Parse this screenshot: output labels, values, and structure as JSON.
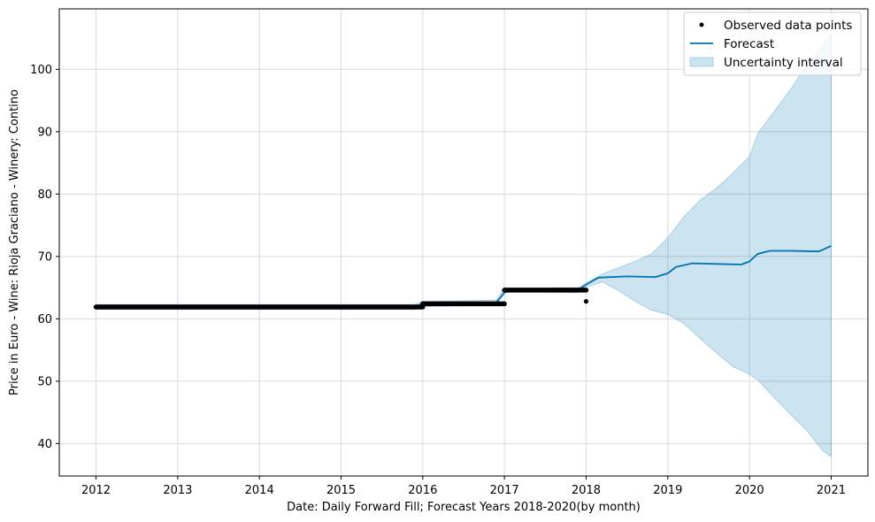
{
  "chart_data": {
    "type": "line",
    "xlabel": "Date: Daily Forward Fill; Forecast Years 2018-2020(by month)",
    "ylabel": "Price in Euro - Wine: Rioja Graciano - Winery: Contino",
    "xlim": [
      2011.55,
      2021.45
    ],
    "ylim": [
      34.8,
      109.7
    ],
    "x_ticks": [
      2012,
      2013,
      2014,
      2015,
      2016,
      2017,
      2018,
      2019,
      2020,
      2021
    ],
    "x_tick_labels": [
      "2012",
      "2013",
      "2014",
      "2015",
      "2016",
      "2017",
      "2018",
      "2019",
      "2020",
      "2021"
    ],
    "y_ticks": [
      40,
      50,
      60,
      70,
      80,
      90,
      100
    ],
    "y_tick_labels": [
      "40",
      "50",
      "60",
      "70",
      "80",
      "90",
      "100"
    ],
    "grid": true,
    "legend_position": "top-right",
    "legend": [
      {
        "label": "Observed data points",
        "kind": "marker"
      },
      {
        "label": "Forecast",
        "kind": "line"
      },
      {
        "label": "Uncertainty interval",
        "kind": "patch"
      }
    ],
    "colors": {
      "observed": "#000000",
      "forecast": "#0072B2",
      "interval": "#0072B2"
    },
    "observed_segments": [
      {
        "x_start": 2012.0,
        "x_end": 2016.0,
        "y": 61.9
      },
      {
        "x_start": 2016.0,
        "x_end": 2017.0,
        "y": 62.4
      },
      {
        "x_start": 2017.0,
        "x_end": 2018.0,
        "y": 64.6
      }
    ],
    "observed_points": [
      {
        "x": 2018.0,
        "y": 62.8
      }
    ],
    "series": [
      {
        "name": "Forecast",
        "x": [
          2012.0,
          2012.2,
          2012.5,
          2012.8,
          2013.0,
          2013.2,
          2013.5,
          2013.8,
          2014.0,
          2014.2,
          2014.5,
          2014.8,
          2015.0,
          2015.5,
          2015.9,
          2016.0,
          2016.5,
          2016.9,
          2017.0,
          2017.1,
          2017.5,
          2017.9,
          2018.0,
          2018.15,
          2018.5,
          2018.85,
          2019.0,
          2019.1,
          2019.3,
          2019.6,
          2019.9,
          2020.0,
          2020.1,
          2020.25,
          2020.5,
          2020.85,
          2021.0
        ],
        "y": [
          61.9,
          61.8,
          61.9,
          61.9,
          61.8,
          61.9,
          61.9,
          61.9,
          61.8,
          61.9,
          61.9,
          61.9,
          61.8,
          61.9,
          61.9,
          62.4,
          62.5,
          62.6,
          64.2,
          64.6,
          64.6,
          64.6,
          65.5,
          66.6,
          66.8,
          66.7,
          67.3,
          68.3,
          68.9,
          68.8,
          68.7,
          69.2,
          70.4,
          70.9,
          70.9,
          70.8,
          71.7
        ]
      }
    ],
    "interval": {
      "x": [
        2012.0,
        2015.9,
        2016.0,
        2016.9,
        2017.0,
        2017.9,
        2018.0,
        2018.2,
        2018.4,
        2018.6,
        2018.8,
        2019.0,
        2019.2,
        2019.4,
        2019.6,
        2019.8,
        2020.0,
        2020.1,
        2020.3,
        2020.5,
        2020.7,
        2020.9,
        2021.0
      ],
      "upper": [
        62.3,
        62.3,
        62.8,
        63.0,
        64.9,
        65.0,
        65.7,
        67.2,
        68.2,
        69.2,
        70.4,
        73.0,
        76.4,
        79.1,
        81.0,
        83.4,
        86.0,
        89.7,
        93.2,
        96.7,
        100.7,
        103.8,
        105.6
      ],
      "lower": [
        61.5,
        61.5,
        62.0,
        62.2,
        64.3,
        64.2,
        65.1,
        65.9,
        64.5,
        62.8,
        61.4,
        60.7,
        59.2,
        56.8,
        54.5,
        52.3,
        51.1,
        50.2,
        47.4,
        44.7,
        42.1,
        38.8,
        37.9
      ]
    }
  }
}
